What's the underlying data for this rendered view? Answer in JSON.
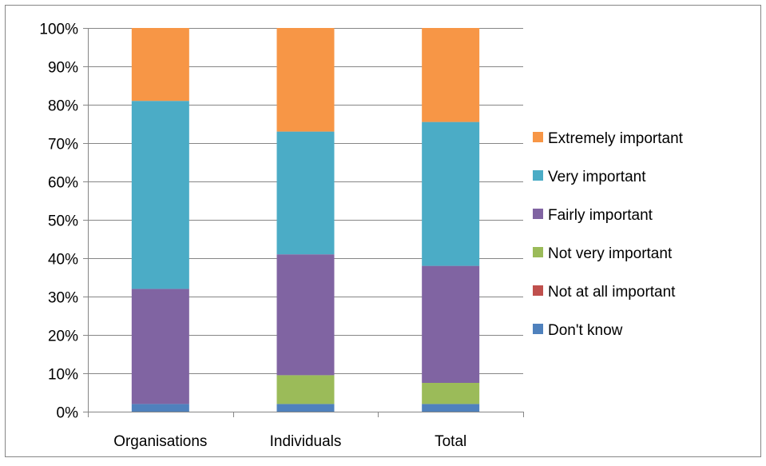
{
  "chart_data": {
    "type": "bar",
    "stacked": true,
    "categories": [
      "Organisations",
      "Individuals",
      "Total"
    ],
    "series": [
      {
        "name": "Don't know",
        "color": "#4f81bd",
        "values": [
          2,
          2,
          2
        ]
      },
      {
        "name": "Not at all important",
        "color": "#c0504d",
        "values": [
          0,
          0,
          0
        ]
      },
      {
        "name": "Not very important",
        "color": "#9bbb59",
        "values": [
          0,
          7.5,
          5.5
        ]
      },
      {
        "name": "Fairly important",
        "color": "#8064a2",
        "values": [
          30,
          31.5,
          30.5
        ]
      },
      {
        "name": "Very important",
        "color": "#4bacc6",
        "values": [
          49,
          32,
          37.5
        ]
      },
      {
        "name": "Extremely important",
        "color": "#f79646",
        "values": [
          19,
          27,
          24.5
        ]
      }
    ],
    "y_ticks": [
      "0%",
      "10%",
      "20%",
      "30%",
      "40%",
      "50%",
      "60%",
      "70%",
      "80%",
      "90%",
      "100%"
    ],
    "ylim": [
      0,
      100
    ],
    "grid": true,
    "legend_position": "right",
    "legend_order": [
      "Extremely important",
      "Very important",
      "Fairly important",
      "Not very important",
      "Not at all important",
      "Don't know"
    ]
  }
}
